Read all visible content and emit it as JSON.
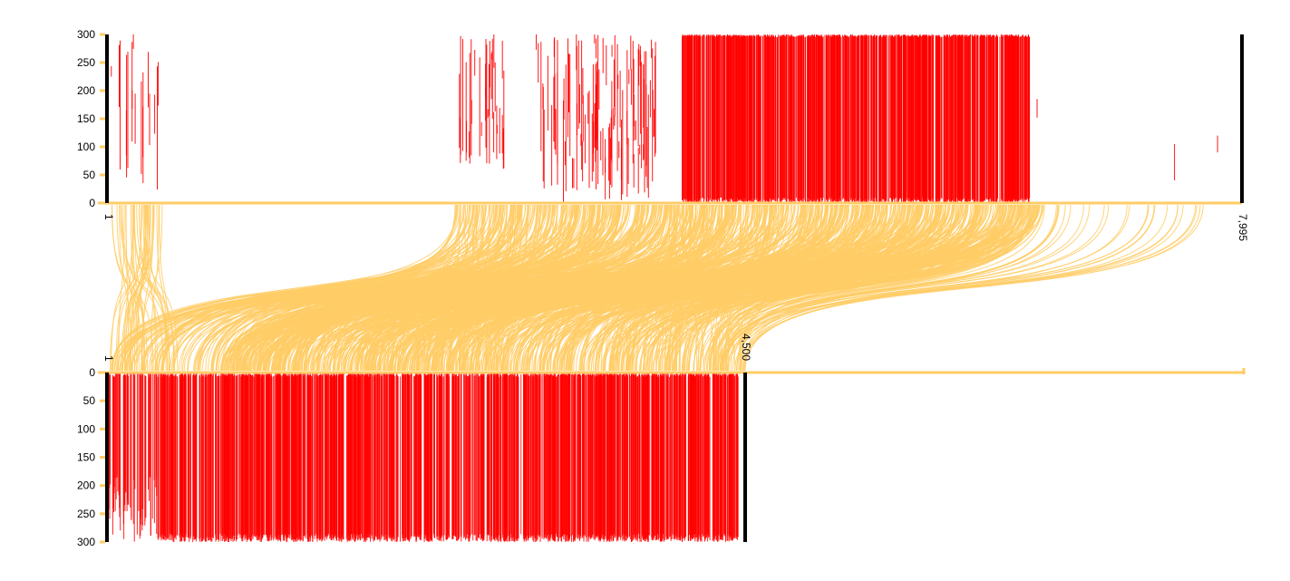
{
  "chart_data": {
    "type": "synteny",
    "colors": {
      "bar": "#ff0000",
      "link": "#ffcc66",
      "track": "#ffcc66",
      "end_marker": "#000000"
    },
    "top_track": {
      "start": 1,
      "end": 7995,
      "start_label": "1",
      "end_label": "7,995",
      "ylim": [
        0,
        300
      ],
      "yticks": [
        "0",
        "50",
        "100",
        "150",
        "200",
        "250",
        "300"
      ],
      "y_direction": "up"
    },
    "bottom_track": {
      "start": 1,
      "end": 4500,
      "axis_extent": 8100,
      "start_label": "1",
      "end_label": "4,500",
      "ylim": [
        0,
        300
      ],
      "yticks": [
        "0",
        "50",
        "100",
        "150",
        "200",
        "250",
        "300"
      ],
      "y_direction": "down"
    },
    "top_bar_regions": [
      {
        "from": 20,
        "to": 380,
        "count": 18,
        "ymin": 20,
        "ymax": 300
      },
      {
        "from": 2480,
        "to": 2800,
        "count": 35,
        "ymin": 60,
        "ymax": 300
      },
      {
        "from": 3010,
        "to": 3880,
        "count": 110,
        "ymin": 0,
        "ymax": 300
      },
      {
        "from": 4050,
        "to": 6500,
        "count": 900,
        "ymin": 0,
        "ymax": 300
      },
      {
        "from": 6540,
        "to": 6560,
        "count": 1,
        "ymin": 140,
        "ymax": 185
      },
      {
        "from": 7510,
        "to": 7520,
        "count": 1,
        "ymin": 30,
        "ymax": 125
      },
      {
        "from": 7820,
        "to": 7830,
        "count": 1,
        "ymin": 90,
        "ymax": 120
      }
    ],
    "bottom_bar_regions": [
      {
        "from": 1,
        "to": 360,
        "count": 70,
        "ymin": 0,
        "ymax": 300
      },
      {
        "from": 360,
        "to": 4450,
        "count": 1500,
        "ymin": 0,
        "ymax": 300
      }
    ],
    "link_groups": [
      {
        "top_from": 30,
        "top_to": 400,
        "bottom_from": 20,
        "bottom_to": 500,
        "count": 45
      },
      {
        "top_from": 2450,
        "top_to": 3900,
        "bottom_from": 20,
        "bottom_to": 2800,
        "count": 320
      },
      {
        "top_from": 3900,
        "top_to": 6600,
        "bottom_from": 800,
        "bottom_to": 4480,
        "count": 700
      },
      {
        "top_from": 6600,
        "top_to": 7900,
        "bottom_from": 4300,
        "bottom_to": 4500,
        "count": 25
      }
    ]
  }
}
